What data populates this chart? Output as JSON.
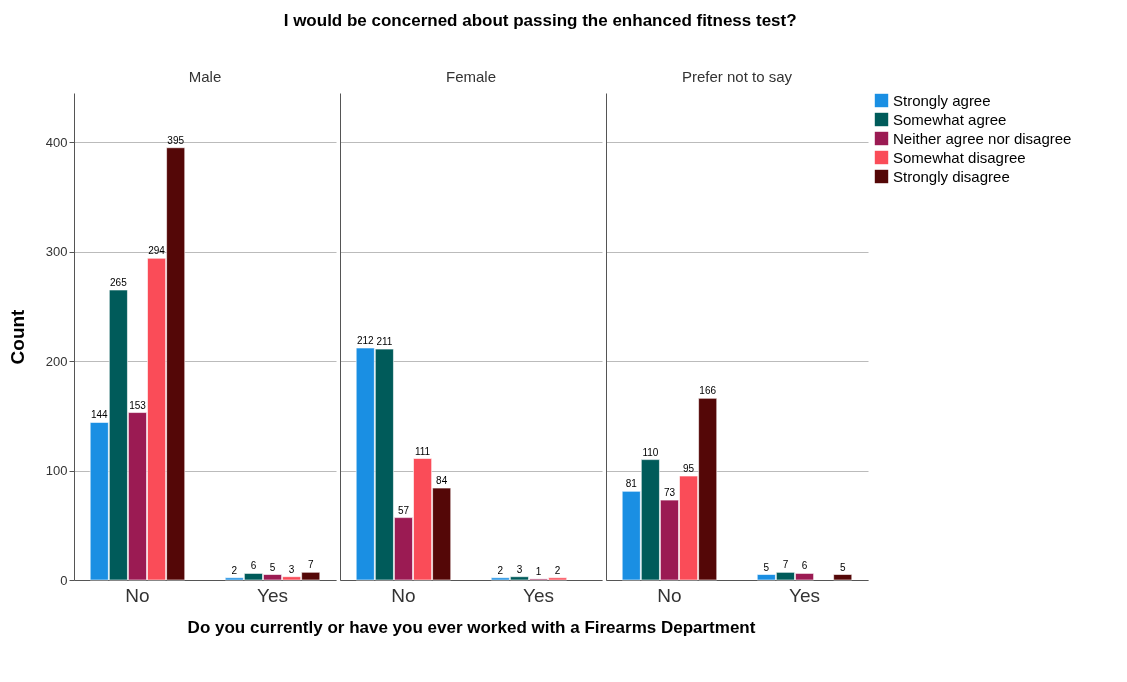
{
  "chart_data": [
    {
      "type": "bar",
      "title": "Male",
      "ylabel": "Count",
      "categories": [
        "No",
        "Yes"
      ],
      "ylim": [
        0,
        445
      ],
      "yticks": [
        0,
        100,
        200,
        300,
        400
      ],
      "grid": "y",
      "data_labels": true,
      "legend": "top right",
      "annotations": [
        "I would be concerned about passing the enhanced fitness test?"
      ],
      "series": [
        {
          "name": "Strongly agree",
          "color": "#1a8fe3",
          "values": [
            144,
            2
          ]
        },
        {
          "name": "Somewhat agree",
          "color": "#005b5a",
          "values": [
            265,
            6
          ]
        },
        {
          "name": "Neither agree nor disagree",
          "color": "#9b1b53",
          "values": [
            153,
            5
          ]
        },
        {
          "name": "Somewhat disagree",
          "color": "#fa4c58",
          "values": [
            294,
            3
          ]
        },
        {
          "name": "Strongly disagree",
          "color": "#540707",
          "values": [
            395,
            7
          ]
        }
      ]
    },
    {
      "type": "bar",
      "title": "Female",
      "xlabel": "Do you currently or have you ever worked with a Firearms Department",
      "categories": [
        "No",
        "Yes"
      ],
      "ylim": [
        0,
        445
      ],
      "yticks": [
        0,
        100,
        200,
        300,
        400
      ],
      "grid": "y",
      "data_labels": true,
      "tick_labels": "x",
      "series": [
        {
          "name": "Strongly agree",
          "color": "#1a8fe3",
          "values": [
            212,
            2
          ]
        },
        {
          "name": "Somewhat agree",
          "color": "#005b5a",
          "values": [
            211,
            3
          ]
        },
        {
          "name": "Neither agree nor disagree",
          "color": "#9b1b53",
          "values": [
            57,
            1
          ]
        },
        {
          "name": "Somewhat disagree",
          "color": "#fa4c58",
          "values": [
            111,
            2
          ]
        },
        {
          "name": "Strongly disagree",
          "color": "#540707",
          "values": [
            84,
            null
          ]
        }
      ]
    },
    {
      "type": "bar",
      "title": "Prefer not to say",
      "categories": [
        "No",
        "Yes"
      ],
      "ylim": [
        0,
        445
      ],
      "yticks": [
        0,
        100,
        200,
        300,
        400
      ],
      "grid": "y",
      "data_labels": true,
      "tick_labels": "x",
      "series": [
        {
          "name": "Strongly agree",
          "color": "#1a8fe3",
          "values": [
            81,
            5
          ]
        },
        {
          "name": "Somewhat agree",
          "color": "#005b5a",
          "values": [
            110,
            7
          ]
        },
        {
          "name": "Neither agree nor disagree",
          "color": "#9b1b53",
          "values": [
            73,
            6
          ]
        },
        {
          "name": "Somewhat disagree",
          "color": "#fa4c58",
          "values": [
            95,
            null
          ]
        },
        {
          "name": "Strongly disagree",
          "color": "#540707",
          "values": [
            166,
            5
          ]
        }
      ]
    }
  ]
}
